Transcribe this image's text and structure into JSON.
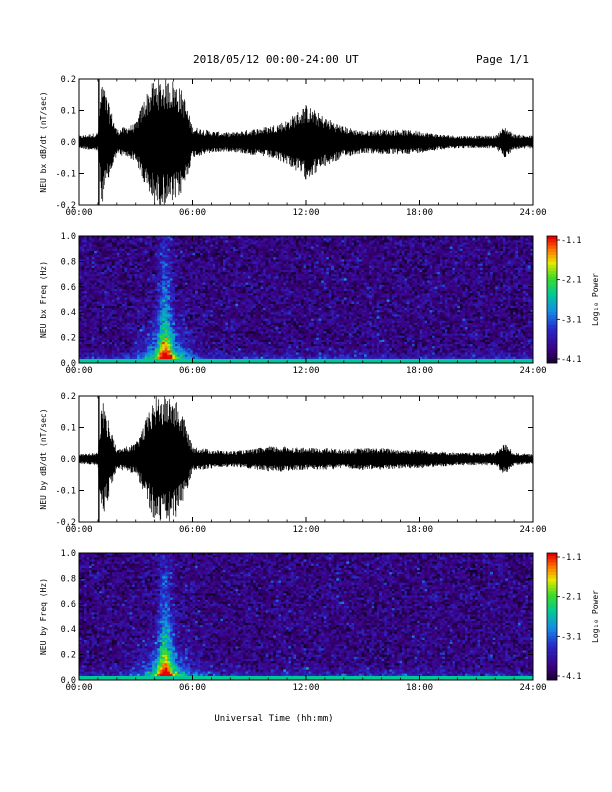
{
  "header": {
    "title": "2018/05/12  00:00-24:00 UT",
    "page": "Page 1/1"
  },
  "xlabel": "Universal Time (hh:mm)",
  "x_ticks": [
    "00:00",
    "06:00",
    "12:00",
    "18:00",
    "24:00"
  ],
  "colorbar": {
    "label": "Log₁₀ Power",
    "ticks": [
      "-1.1",
      "-2.1",
      "-3.1",
      "-4.1"
    ]
  },
  "chart_data": [
    {
      "type": "line",
      "ylabel": "NEU bx dB/dt (nT/sec)",
      "xlim": [
        0,
        24
      ],
      "ylim": [
        -0.2,
        0.2
      ],
      "y_ticks": [
        "0.2",
        "0.1",
        "0.0",
        "-0.1",
        "-0.2"
      ],
      "envelope": {
        "x": [
          0,
          1,
          1.2,
          2,
          3,
          3.5,
          4,
          4.5,
          5,
          5.5,
          6,
          7,
          8,
          9,
          10,
          11,
          12,
          13,
          14,
          15,
          16,
          17,
          18,
          19,
          20,
          21,
          22,
          22.5,
          23,
          24
        ],
        "amplitude": [
          0.02,
          0.03,
          0.2,
          0.04,
          0.06,
          0.15,
          0.2,
          0.2,
          0.2,
          0.16,
          0.05,
          0.035,
          0.03,
          0.04,
          0.05,
          0.07,
          0.12,
          0.08,
          0.05,
          0.035,
          0.04,
          0.04,
          0.035,
          0.025,
          0.02,
          0.02,
          0.02,
          0.05,
          0.025,
          0.02
        ]
      }
    },
    {
      "type": "heatmap",
      "ylabel": "NEU bx Freq (Hz)",
      "xlim": [
        0,
        24
      ],
      "ylim": [
        0,
        1.0
      ],
      "y_ticks": [
        "1.0",
        "0.8",
        "0.6",
        "0.4",
        "0.2",
        "0.0"
      ],
      "zlim": [
        -4.1,
        -1.1
      ],
      "zlabel": "Log₁₀ Power"
    },
    {
      "type": "line",
      "ylabel": "NEU by dB/dt (nT/sec)",
      "xlim": [
        0,
        24
      ],
      "ylim": [
        -0.2,
        0.2
      ],
      "y_ticks": [
        "0.2",
        "0.1",
        "0.0",
        "-0.1",
        "-0.2"
      ],
      "envelope": {
        "x": [
          0,
          1,
          1.2,
          2,
          3,
          3.5,
          4,
          4.5,
          5,
          5.5,
          6,
          7,
          8,
          9,
          10,
          11,
          12,
          13,
          14,
          15,
          16,
          17,
          18,
          19,
          20,
          21,
          22,
          22.5,
          23,
          24
        ],
        "amplitude": [
          0.015,
          0.02,
          0.2,
          0.03,
          0.05,
          0.12,
          0.2,
          0.2,
          0.2,
          0.14,
          0.04,
          0.03,
          0.025,
          0.03,
          0.04,
          0.04,
          0.035,
          0.035,
          0.03,
          0.035,
          0.035,
          0.03,
          0.03,
          0.025,
          0.02,
          0.02,
          0.02,
          0.05,
          0.02,
          0.015
        ]
      }
    },
    {
      "type": "heatmap",
      "ylabel": "NEU by Freq (Hz)",
      "xlim": [
        0,
        24
      ],
      "ylim": [
        0,
        1.0
      ],
      "y_ticks": [
        "1.0",
        "0.8",
        "0.6",
        "0.4",
        "0.2",
        "0.0"
      ],
      "zlim": [
        -4.1,
        -1.1
      ],
      "zlabel": "Log₁₀ Power"
    }
  ]
}
